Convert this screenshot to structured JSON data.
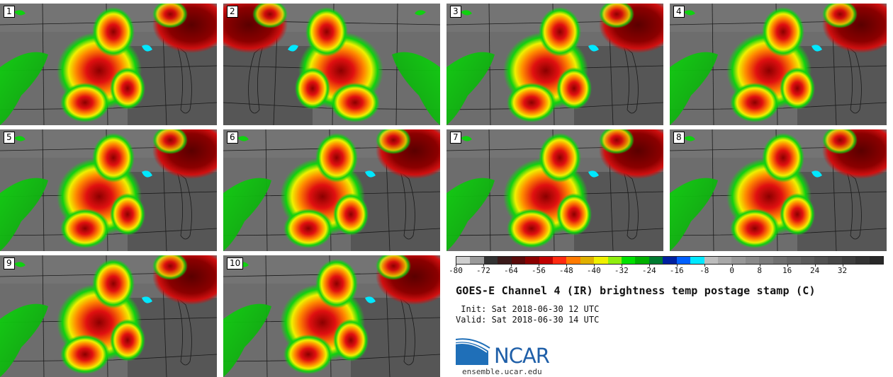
{
  "panels": [
    {
      "label": "1"
    },
    {
      "label": "2"
    },
    {
      "label": "3"
    },
    {
      "label": "4"
    },
    {
      "label": "5"
    },
    {
      "label": "6"
    },
    {
      "label": "7"
    },
    {
      "label": "8"
    },
    {
      "label": "9"
    },
    {
      "label": "10"
    }
  ],
  "colorbar": {
    "ticks": [
      "-80",
      "-72",
      "-64",
      "-56",
      "-48",
      "-40",
      "-32",
      "-24",
      "-16",
      "-8",
      "0",
      "8",
      "16",
      "24",
      "32"
    ],
    "colors": [
      "#cfcfcf",
      "#9a9a9a",
      "#333333",
      "#3a1a1a",
      "#5a0a0a",
      "#8b0000",
      "#c00000",
      "#ff2a10",
      "#ff7a00",
      "#e0b000",
      "#f0f000",
      "#90ee10",
      "#00e000",
      "#00b000",
      "#007a30",
      "#0020a0",
      "#0060ff",
      "#00e8ff",
      "#bdbdbd",
      "#a8a8a8",
      "#989898",
      "#8a8a8a",
      "#7c7c7c",
      "#707070",
      "#666666",
      "#5c5c5c",
      "#525252",
      "#484848",
      "#3e3e3e",
      "#333333",
      "#282828"
    ]
  },
  "title": "GOES-E Channel 4 (IR) brightness temp postage stamp (C)",
  "init_line": " Init: Sat 2018-06-30 12 UTC",
  "valid_line": "Valid: Sat 2018-06-30 14 UTC",
  "logo": {
    "text": "NCAR",
    "url": "ensemble.ucar.edu"
  }
}
